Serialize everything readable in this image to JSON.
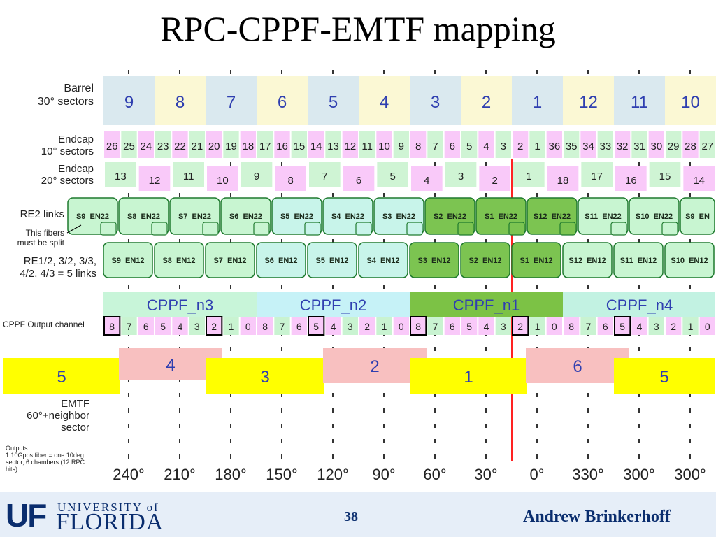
{
  "slide": {
    "title": "RPC-CPPF-EMTF mapping",
    "page_number": "38",
    "author": "Andrew Brinkerhoff",
    "logo": {
      "mark": "UF",
      "university": "UNIVERSITY of",
      "name": "FLORIDA"
    }
  },
  "colors": {
    "barrel_a": "#dae9ef",
    "barrel_b": "#fbf8d4",
    "endcap_a": "#f9c9f9",
    "endcap_b": "#cff4d4",
    "link_light": "#c8f5d1",
    "link_cyan": "#c8f4ea",
    "link_dark": "#7cc451",
    "link_border": "#1e7a2e",
    "cppf_n3": "#c8f5d9",
    "cppf_n2": "#c6f2f7",
    "cppf_n1": "#7cc245",
    "cppf_n4": "#c2f2e2",
    "out_pink": "#f9c9f9",
    "out_green": "#c9f3d1",
    "emtf_yellow": "#ffff00",
    "emtf_pink": "#f8c0c0",
    "text_blue": "#2f3fb0",
    "footer_navy": "#0a2d6e",
    "red_line": "#ff2222"
  },
  "row_labels": {
    "barrel": [
      "Barrel",
      "30° sectors"
    ],
    "endcap10": [
      "Endcap",
      "10° sectors"
    ],
    "endcap20": [
      "Endcap",
      "20° sectors"
    ],
    "re2": [
      "RE2 links"
    ],
    "split_note": [
      "This fibers",
      "must be split"
    ],
    "re1": [
      "RE1/2, 3/2, 3/3,",
      "4/2, 4/3 = 5 links"
    ],
    "cppf_out": [
      "CPPF Output channel"
    ],
    "emtf": [
      "EMTF",
      "60°+neighbor",
      "sector"
    ],
    "outputs_note": [
      "Outputs:",
      "1 10Gpbs fiber = one 10deg",
      "sector, 6 chambers (12 RPC",
      "hits)"
    ]
  },
  "barrel_sectors": [
    "9",
    "8",
    "7",
    "6",
    "5",
    "4",
    "3",
    "2",
    "1",
    "12",
    "11",
    "10"
  ],
  "endcap10_sectors": [
    "26",
    "25",
    "24",
    "23",
    "22",
    "21",
    "20",
    "19",
    "18",
    "17",
    "16",
    "15",
    "14",
    "13",
    "12",
    "11",
    "10",
    "9",
    "8",
    "7",
    "6",
    "5",
    "4",
    "3",
    "2",
    "1",
    "36",
    "35",
    "34",
    "33",
    "32",
    "31",
    "30",
    "29",
    "28",
    "27"
  ],
  "endcap20_sectors": [
    "13",
    "12",
    "11",
    "10",
    "9",
    "8",
    "7",
    "6",
    "5",
    "4",
    "3",
    "2",
    "1",
    "18",
    "17",
    "16",
    "15",
    "14"
  ],
  "re2_links": [
    {
      "label": "S9_EN22",
      "shade": "light"
    },
    {
      "label": "S8_EN22",
      "shade": "light"
    },
    {
      "label": "S7_EN22",
      "shade": "light"
    },
    {
      "label": "S6_EN22",
      "shade": "light"
    },
    {
      "label": "S5_EN22",
      "shade": "cyan"
    },
    {
      "label": "S4_EN22",
      "shade": "cyan"
    },
    {
      "label": "S3_EN22",
      "shade": "cyan"
    },
    {
      "label": "S2_EN22",
      "shade": "dark"
    },
    {
      "label": "S1_EN22",
      "shade": "dark"
    },
    {
      "label": "S12_EN22",
      "shade": "dark"
    },
    {
      "label": "S11_EN22",
      "shade": "light"
    },
    {
      "label": "S10_EN22",
      "shade": "light"
    },
    {
      "label": "S9_EN",
      "shade": "light"
    }
  ],
  "re1_links": [
    {
      "label": "S9_EN12",
      "shade": "light"
    },
    {
      "label": "S8_EN12",
      "shade": "light"
    },
    {
      "label": "S7_EN12",
      "shade": "light"
    },
    {
      "label": "S6_EN12",
      "shade": "cyan"
    },
    {
      "label": "S5_EN12",
      "shade": "cyan"
    },
    {
      "label": "S4_EN12",
      "shade": "cyan"
    },
    {
      "label": "S3_EN12",
      "shade": "dark"
    },
    {
      "label": "S2_EN12",
      "shade": "dark"
    },
    {
      "label": "S1_EN12",
      "shade": "dark"
    },
    {
      "label": "S12_EN12",
      "shade": "light"
    },
    {
      "label": "S11_EN12",
      "shade": "light"
    },
    {
      "label": "S10_EN12",
      "shade": "light"
    }
  ],
  "cppf_boards": [
    {
      "label": "CPPF_n3",
      "color": "#c8f5d9"
    },
    {
      "label": "CPPF_n2",
      "color": "#c6f2f7"
    },
    {
      "label": "CPPF_n1",
      "color": "#7cc245"
    },
    {
      "label": "CPPF_n4",
      "color": "#c2f2e2"
    }
  ],
  "cppf_output_channels": [
    "8",
    "7",
    "6",
    "5",
    "4",
    "3",
    "2",
    "1",
    "0",
    "8",
    "7",
    "6",
    "5",
    "4",
    "3",
    "2",
    "1",
    "0",
    "8",
    "7",
    "6",
    "5",
    "4",
    "3",
    "2",
    "1",
    "0",
    "8",
    "7",
    "6",
    "5",
    "4",
    "3",
    "2",
    "1",
    "0"
  ],
  "boxed_channel_indices": [
    0,
    6,
    12,
    18,
    24,
    30
  ],
  "emtf_sectors": [
    {
      "label": "5",
      "color": "yellow"
    },
    {
      "label": "4",
      "color": "pink"
    },
    {
      "label": "3",
      "color": "yellow"
    },
    {
      "label": "2",
      "color": "pink"
    },
    {
      "label": "1",
      "color": "yellow"
    },
    {
      "label": "6",
      "color": "pink"
    },
    {
      "label": "5",
      "color": "yellow"
    }
  ],
  "phi_labels": [
    "240°",
    "210°",
    "180°",
    "150°",
    "120°",
    "90°",
    "60°",
    "30°",
    "0°",
    "330°",
    "300°",
    "300°"
  ]
}
